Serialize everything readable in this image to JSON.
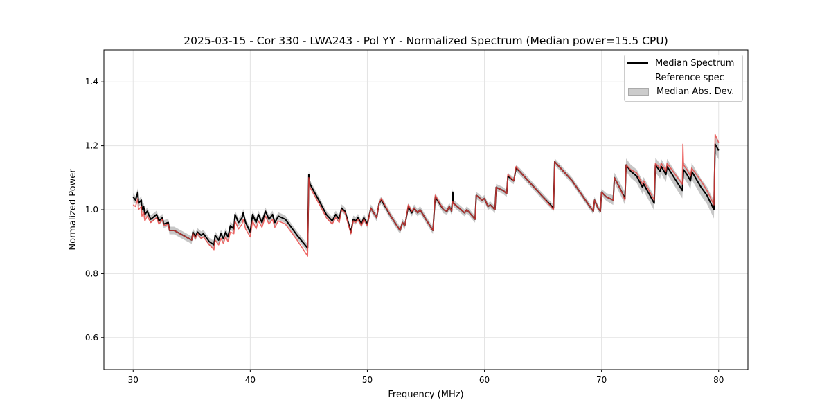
{
  "chart_data": {
    "type": "line",
    "title": "2025-03-15 - Cor 330 - LWA243 - Pol YY - Normalized Spectrum (Median power=15.5 CPU)",
    "xlabel": "Frequency (MHz)",
    "ylabel": "Normalized Power",
    "xlim": [
      27.5,
      82.5
    ],
    "ylim": [
      0.5,
      1.5
    ],
    "xticks": [
      30,
      40,
      50,
      60,
      70,
      80
    ],
    "yticks": [
      0.6,
      0.8,
      1.0,
      1.2,
      1.4
    ],
    "xtick_labels": [
      "30",
      "40",
      "50",
      "60",
      "70",
      "80"
    ],
    "ytick_labels": [
      "0.6",
      "0.8",
      "1.0",
      "1.2",
      "1.4"
    ],
    "grid": true,
    "legend_position": "top-right",
    "legend": [
      "Median Spectrum",
      "Reference spec",
      "Median Abs. Dev."
    ],
    "colors": {
      "median": "#000000",
      "reference": "#e8413f",
      "mad": "#b0b0b0"
    },
    "series": [
      {
        "name": "Median Spectrum",
        "points": [
          [
            30.0,
            1.04
          ],
          [
            30.2,
            1.03
          ],
          [
            30.4,
            1.055
          ],
          [
            30.45,
            1.02
          ],
          [
            30.7,
            1.03
          ],
          [
            30.75,
            1.0
          ],
          [
            30.9,
            1.01
          ],
          [
            31.0,
            0.985
          ],
          [
            31.2,
            0.995
          ],
          [
            31.5,
            0.97
          ],
          [
            32.0,
            0.985
          ],
          [
            32.2,
            0.965
          ],
          [
            32.5,
            0.975
          ],
          [
            32.6,
            0.955
          ],
          [
            33.0,
            0.96
          ],
          [
            33.1,
            0.935
          ],
          [
            33.5,
            0.935
          ],
          [
            34.5,
            0.915
          ],
          [
            35.0,
            0.905
          ],
          [
            35.1,
            0.93
          ],
          [
            35.3,
            0.915
          ],
          [
            35.5,
            0.93
          ],
          [
            35.8,
            0.92
          ],
          [
            36.0,
            0.925
          ],
          [
            36.5,
            0.9
          ],
          [
            36.9,
            0.89
          ],
          [
            37.0,
            0.92
          ],
          [
            37.3,
            0.905
          ],
          [
            37.5,
            0.925
          ],
          [
            37.7,
            0.91
          ],
          [
            37.9,
            0.93
          ],
          [
            38.1,
            0.915
          ],
          [
            38.3,
            0.95
          ],
          [
            38.6,
            0.94
          ],
          [
            38.7,
            0.985
          ],
          [
            39.0,
            0.96
          ],
          [
            39.3,
            0.975
          ],
          [
            39.4,
            0.99
          ],
          [
            39.6,
            0.96
          ],
          [
            40.0,
            0.93
          ],
          [
            40.2,
            0.985
          ],
          [
            40.5,
            0.96
          ],
          [
            40.7,
            0.985
          ],
          [
            41.0,
            0.96
          ],
          [
            41.3,
            0.995
          ],
          [
            41.6,
            0.97
          ],
          [
            41.9,
            0.985
          ],
          [
            42.1,
            0.96
          ],
          [
            42.4,
            0.98
          ],
          [
            43.0,
            0.97
          ],
          [
            44.0,
            0.92
          ],
          [
            44.9,
            0.88
          ],
          [
            45.0,
            1.11
          ],
          [
            45.1,
            1.08
          ],
          [
            46.0,
            1.02
          ],
          [
            46.5,
            0.985
          ],
          [
            47.0,
            0.965
          ],
          [
            47.3,
            0.985
          ],
          [
            47.6,
            0.97
          ],
          [
            47.8,
            1.005
          ],
          [
            48.1,
            0.995
          ],
          [
            48.6,
            0.93
          ],
          [
            48.8,
            0.97
          ],
          [
            49.0,
            0.965
          ],
          [
            49.2,
            0.975
          ],
          [
            49.5,
            0.955
          ],
          [
            49.7,
            0.975
          ],
          [
            50.0,
            0.955
          ],
          [
            50.3,
            1.005
          ],
          [
            50.8,
            0.975
          ],
          [
            51.0,
            1.02
          ],
          [
            51.2,
            1.03
          ],
          [
            52.0,
            0.98
          ],
          [
            52.8,
            0.935
          ],
          [
            53.0,
            0.96
          ],
          [
            53.2,
            0.95
          ],
          [
            53.5,
            1.01
          ],
          [
            53.8,
            0.99
          ],
          [
            54.0,
            1.005
          ],
          [
            54.3,
            0.99
          ],
          [
            54.5,
            1.0
          ],
          [
            55.0,
            0.97
          ],
          [
            55.6,
            0.935
          ],
          [
            55.8,
            1.04
          ],
          [
            56.5,
            1.0
          ],
          [
            56.8,
            0.995
          ],
          [
            57.0,
            1.01
          ],
          [
            57.2,
            0.995
          ],
          [
            57.3,
            1.055
          ],
          [
            57.35,
            1.02
          ],
          [
            58.0,
            1.0
          ],
          [
            58.3,
            0.99
          ],
          [
            58.5,
            1.0
          ],
          [
            59.2,
            0.97
          ],
          [
            59.3,
            1.045
          ],
          [
            59.8,
            1.03
          ],
          [
            60.0,
            1.035
          ],
          [
            60.3,
            1.01
          ],
          [
            60.5,
            1.015
          ],
          [
            60.9,
            1.0
          ],
          [
            61.0,
            1.07
          ],
          [
            61.6,
            1.06
          ],
          [
            61.9,
            1.05
          ],
          [
            62.0,
            1.105
          ],
          [
            62.5,
            1.09
          ],
          [
            62.7,
            1.13
          ],
          [
            63.0,
            1.12
          ],
          [
            65.0,
            1.04
          ],
          [
            65.9,
            1.005
          ],
          [
            66.0,
            1.15
          ],
          [
            66.5,
            1.13
          ],
          [
            67.5,
            1.09
          ],
          [
            69.0,
            1.01
          ],
          [
            69.3,
            0.995
          ],
          [
            69.4,
            1.03
          ],
          [
            69.7,
            1.005
          ],
          [
            69.9,
            0.995
          ],
          [
            70.0,
            1.055
          ],
          [
            70.4,
            1.04
          ],
          [
            71.0,
            1.03
          ],
          [
            71.1,
            1.1
          ],
          [
            71.6,
            1.065
          ],
          [
            72.0,
            1.035
          ],
          [
            72.1,
            1.14
          ],
          [
            72.5,
            1.12
          ],
          [
            73.0,
            1.105
          ],
          [
            73.5,
            1.07
          ],
          [
            73.6,
            1.08
          ],
          [
            74.5,
            1.02
          ],
          [
            74.6,
            1.14
          ],
          [
            75.0,
            1.12
          ],
          [
            75.1,
            1.135
          ],
          [
            75.5,
            1.11
          ],
          [
            75.6,
            1.135
          ],
          [
            76.9,
            1.06
          ],
          [
            77.0,
            1.125
          ],
          [
            77.3,
            1.11
          ],
          [
            77.6,
            1.09
          ],
          [
            77.7,
            1.12
          ],
          [
            78.5,
            1.07
          ],
          [
            79.0,
            1.045
          ],
          [
            79.6,
            1.0
          ],
          [
            79.7,
            1.205
          ],
          [
            80.0,
            1.185
          ]
        ]
      },
      {
        "name": "Reference spec",
        "points": [
          [
            30.0,
            1.015
          ],
          [
            30.2,
            1.01
          ],
          [
            30.4,
            1.035
          ],
          [
            30.45,
            1.0
          ],
          [
            30.7,
            1.01
          ],
          [
            30.75,
            0.98
          ],
          [
            30.9,
            0.99
          ],
          [
            31.0,
            0.965
          ],
          [
            31.2,
            0.98
          ],
          [
            31.5,
            0.96
          ],
          [
            32.0,
            0.975
          ],
          [
            32.2,
            0.955
          ],
          [
            32.5,
            0.97
          ],
          [
            32.6,
            0.95
          ],
          [
            33.0,
            0.955
          ],
          [
            33.1,
            0.935
          ],
          [
            33.5,
            0.935
          ],
          [
            34.5,
            0.915
          ],
          [
            35.0,
            0.905
          ],
          [
            35.1,
            0.925
          ],
          [
            35.3,
            0.91
          ],
          [
            35.5,
            0.925
          ],
          [
            35.8,
            0.91
          ],
          [
            36.0,
            0.915
          ],
          [
            36.5,
            0.89
          ],
          [
            36.9,
            0.875
          ],
          [
            37.0,
            0.905
          ],
          [
            37.3,
            0.89
          ],
          [
            37.5,
            0.91
          ],
          [
            37.7,
            0.895
          ],
          [
            37.9,
            0.915
          ],
          [
            38.1,
            0.9
          ],
          [
            38.3,
            0.93
          ],
          [
            38.6,
            0.925
          ],
          [
            38.7,
            0.965
          ],
          [
            39.0,
            0.94
          ],
          [
            39.3,
            0.955
          ],
          [
            39.4,
            0.97
          ],
          [
            39.6,
            0.94
          ],
          [
            40.0,
            0.915
          ],
          [
            40.2,
            0.965
          ],
          [
            40.5,
            0.94
          ],
          [
            40.7,
            0.965
          ],
          [
            41.0,
            0.945
          ],
          [
            41.3,
            0.98
          ],
          [
            41.6,
            0.955
          ],
          [
            41.9,
            0.97
          ],
          [
            42.1,
            0.945
          ],
          [
            42.4,
            0.965
          ],
          [
            43.0,
            0.955
          ],
          [
            44.0,
            0.905
          ],
          [
            44.9,
            0.855
          ],
          [
            45.0,
            1.1
          ],
          [
            45.1,
            1.07
          ],
          [
            46.0,
            1.01
          ],
          [
            46.5,
            0.975
          ],
          [
            47.0,
            0.955
          ],
          [
            47.3,
            0.975
          ],
          [
            47.6,
            0.96
          ],
          [
            47.8,
            1.0
          ],
          [
            48.1,
            0.99
          ],
          [
            48.6,
            0.925
          ],
          [
            48.8,
            0.965
          ],
          [
            49.0,
            0.96
          ],
          [
            49.2,
            0.97
          ],
          [
            49.5,
            0.95
          ],
          [
            49.7,
            0.97
          ],
          [
            50.0,
            0.95
          ],
          [
            50.3,
            1.005
          ],
          [
            50.8,
            0.975
          ],
          [
            51.0,
            1.02
          ],
          [
            51.2,
            1.035
          ],
          [
            52.0,
            0.98
          ],
          [
            52.8,
            0.935
          ],
          [
            53.0,
            0.96
          ],
          [
            53.2,
            0.95
          ],
          [
            53.5,
            1.015
          ],
          [
            53.8,
            0.995
          ],
          [
            54.0,
            1.005
          ],
          [
            54.3,
            0.99
          ],
          [
            54.5,
            1.0
          ],
          [
            55.0,
            0.97
          ],
          [
            55.6,
            0.935
          ],
          [
            55.8,
            1.045
          ],
          [
            56.5,
            1.0
          ],
          [
            56.8,
            0.995
          ],
          [
            57.0,
            1.01
          ],
          [
            57.2,
            0.995
          ],
          [
            57.3,
            1.025
          ],
          [
            57.35,
            1.02
          ],
          [
            58.0,
            1.0
          ],
          [
            58.3,
            0.99
          ],
          [
            58.5,
            1.0
          ],
          [
            59.2,
            0.97
          ],
          [
            59.3,
            1.045
          ],
          [
            59.8,
            1.03
          ],
          [
            60.0,
            1.035
          ],
          [
            60.3,
            1.01
          ],
          [
            60.5,
            1.015
          ],
          [
            60.9,
            1.0
          ],
          [
            61.0,
            1.07
          ],
          [
            61.6,
            1.06
          ],
          [
            61.9,
            1.05
          ],
          [
            62.0,
            1.11
          ],
          [
            62.5,
            1.09
          ],
          [
            62.7,
            1.135
          ],
          [
            63.0,
            1.12
          ],
          [
            65.0,
            1.04
          ],
          [
            65.9,
            1.0
          ],
          [
            66.0,
            1.15
          ],
          [
            66.5,
            1.13
          ],
          [
            67.5,
            1.09
          ],
          [
            69.0,
            1.01
          ],
          [
            69.3,
            0.995
          ],
          [
            69.4,
            1.03
          ],
          [
            69.7,
            1.005
          ],
          [
            69.9,
            0.995
          ],
          [
            70.0,
            1.055
          ],
          [
            70.4,
            1.04
          ],
          [
            71.0,
            1.03
          ],
          [
            71.1,
            1.1
          ],
          [
            71.6,
            1.065
          ],
          [
            72.0,
            1.03
          ],
          [
            72.1,
            1.14
          ],
          [
            72.5,
            1.125
          ],
          [
            73.0,
            1.115
          ],
          [
            73.5,
            1.08
          ],
          [
            73.6,
            1.09
          ],
          [
            74.5,
            1.03
          ],
          [
            74.6,
            1.145
          ],
          [
            75.0,
            1.13
          ],
          [
            75.1,
            1.145
          ],
          [
            75.5,
            1.12
          ],
          [
            75.6,
            1.145
          ],
          [
            76.9,
            1.08
          ],
          [
            76.95,
            1.205
          ],
          [
            77.0,
            1.14
          ],
          [
            77.3,
            1.125
          ],
          [
            77.6,
            1.105
          ],
          [
            77.7,
            1.13
          ],
          [
            78.5,
            1.09
          ],
          [
            79.0,
            1.06
          ],
          [
            79.6,
            1.015
          ],
          [
            79.7,
            1.235
          ],
          [
            80.0,
            1.21
          ]
        ]
      }
    ],
    "mad_halfwidth": [
      [
        30,
        0.012
      ],
      [
        45,
        0.012
      ],
      [
        70,
        0.01
      ],
      [
        72,
        0.02
      ],
      [
        80,
        0.028
      ]
    ]
  }
}
